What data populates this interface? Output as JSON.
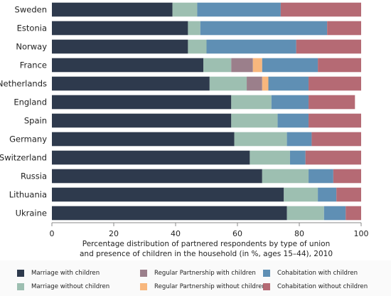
{
  "chart_data": {
    "type": "bar",
    "orientation": "horizontal",
    "stacked": true,
    "categories": [
      "Sweden",
      "Estonia",
      "Norway",
      "France",
      "Netherlands",
      "England",
      "Spain",
      "Germany",
      "Switzerland",
      "Russia",
      "Lithuania",
      "Ukraine"
    ],
    "series": [
      {
        "name": "Marriage with children",
        "color": "#2e3a4d",
        "values": [
          39,
          44,
          44,
          49,
          51,
          58,
          58,
          59,
          64,
          68,
          75,
          76
        ]
      },
      {
        "name": "Marriage without children",
        "color": "#9dbfb1",
        "values": [
          8,
          4,
          6,
          9,
          12,
          13,
          15,
          17,
          13,
          15,
          11,
          12
        ]
      },
      {
        "name": "Regular Partnership with children",
        "color": "#9b7f8b",
        "values": [
          0,
          0,
          0,
          7,
          5,
          0,
          0,
          0,
          0,
          0,
          0,
          0
        ]
      },
      {
        "name": "Regular Partnership without children",
        "color": "#f8b77d",
        "values": [
          0,
          0,
          0,
          3,
          2,
          0,
          0,
          0,
          0,
          0,
          0,
          0
        ]
      },
      {
        "name": "Cohabitation with children",
        "color": "#5f8fb4",
        "values": [
          27,
          41,
          29,
          18,
          13,
          12,
          10,
          8,
          5,
          8,
          6,
          7
        ]
      },
      {
        "name": "Cohabitation without children",
        "color": "#b56a74",
        "values": [
          26,
          11,
          21,
          14,
          17,
          15,
          17,
          16,
          18,
          9,
          8,
          5
        ]
      }
    ],
    "xlim": [
      0,
      100
    ],
    "xticks": [
      0,
      20,
      40,
      60,
      80,
      100
    ],
    "xlabel_line1": "Percentage distribution of partnered respondents by type of union",
    "xlabel_line2": "and presence of children in the household (in %, ages 15–44), 2010",
    "legend_position": "bottom"
  }
}
